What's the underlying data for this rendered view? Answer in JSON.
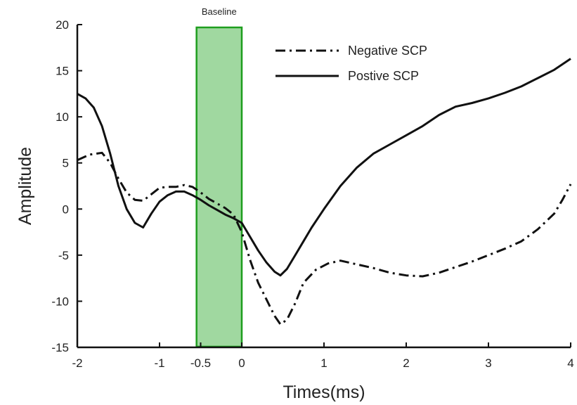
{
  "chart_data": {
    "type": "line",
    "xlabel": "Times(ms)",
    "ylabel": "Amplitude",
    "xlim": [
      -2,
      4
    ],
    "ylim": [
      -15,
      20
    ],
    "x_ticks": [
      -2,
      -1,
      -0.5,
      0,
      1,
      2,
      3,
      4
    ],
    "x_tick_labels": [
      "-2",
      "-1",
      "-0.5",
      "0",
      "1",
      "2",
      "3",
      "4"
    ],
    "y_ticks": [
      -15,
      -10,
      -5,
      0,
      5,
      10,
      15,
      20
    ],
    "y_tick_labels": [
      "-15",
      "-10",
      "-5",
      "0",
      "5",
      "10",
      "15",
      "20"
    ],
    "grid": false,
    "legend": {
      "position": "top-right",
      "entries": [
        "Negative SCP",
        "Postive SCP"
      ]
    },
    "shaded_region": {
      "label": "Baseline",
      "x_start": -0.55,
      "x_end": 0,
      "color": "#8fd18f",
      "border_color": "#1e9e1e"
    },
    "series": [
      {
        "name": "Negative SCP",
        "style": "dashdot",
        "color": "#111111",
        "x": [
          -2,
          -1.85,
          -1.7,
          -1.6,
          -1.5,
          -1.4,
          -1.3,
          -1.2,
          -1.1,
          -1,
          -0.9,
          -0.8,
          -0.7,
          -0.6,
          -0.5,
          -0.4,
          -0.3,
          -0.2,
          -0.1,
          0,
          0.1,
          0.2,
          0.3,
          0.4,
          0.47,
          0.55,
          0.65,
          0.75,
          0.9,
          1.05,
          1.2,
          1.4,
          1.6,
          1.8,
          2.0,
          2.2,
          2.4,
          2.6,
          2.8,
          3.0,
          3.2,
          3.4,
          3.6,
          3.8,
          3.9,
          4.0
        ],
        "y": [
          5.3,
          5.9,
          6.1,
          5.0,
          3.3,
          1.8,
          1.0,
          0.9,
          1.6,
          2.3,
          2.4,
          2.4,
          2.6,
          2.4,
          1.8,
          1.1,
          0.6,
          0.1,
          -0.6,
          -2.5,
          -5.5,
          -8.0,
          -9.8,
          -11.6,
          -12.5,
          -12.0,
          -10.2,
          -8.0,
          -6.6,
          -5.9,
          -5.6,
          -6.0,
          -6.4,
          -6.9,
          -7.2,
          -7.3,
          -6.9,
          -6.3,
          -5.7,
          -5.0,
          -4.3,
          -3.5,
          -2.2,
          -0.5,
          1.0,
          2.7
        ]
      },
      {
        "name": "Postive SCP",
        "style": "solid",
        "color": "#111111",
        "x": [
          -2,
          -1.9,
          -1.8,
          -1.7,
          -1.6,
          -1.5,
          -1.4,
          -1.3,
          -1.2,
          -1.1,
          -1.0,
          -0.9,
          -0.8,
          -0.7,
          -0.6,
          -0.5,
          -0.4,
          -0.3,
          -0.2,
          -0.1,
          0,
          0.1,
          0.2,
          0.3,
          0.4,
          0.47,
          0.55,
          0.65,
          0.75,
          0.85,
          1.0,
          1.2,
          1.4,
          1.6,
          1.8,
          2.0,
          2.2,
          2.4,
          2.6,
          2.8,
          3.0,
          3.2,
          3.4,
          3.6,
          3.8,
          3.9,
          4.0
        ],
        "y": [
          12.5,
          12.0,
          11.0,
          9.0,
          6.0,
          2.5,
          0.0,
          -1.5,
          -2.0,
          -0.5,
          0.8,
          1.5,
          1.9,
          1.9,
          1.5,
          1.0,
          0.4,
          -0.1,
          -0.6,
          -1.0,
          -1.5,
          -3.0,
          -4.5,
          -5.8,
          -6.8,
          -7.2,
          -6.5,
          -5.0,
          -3.5,
          -2.0,
          0.0,
          2.5,
          4.5,
          6.0,
          7.0,
          8.0,
          9.0,
          10.2,
          11.1,
          11.5,
          12.0,
          12.6,
          13.3,
          14.2,
          15.1,
          15.7,
          16.3
        ]
      }
    ]
  }
}
